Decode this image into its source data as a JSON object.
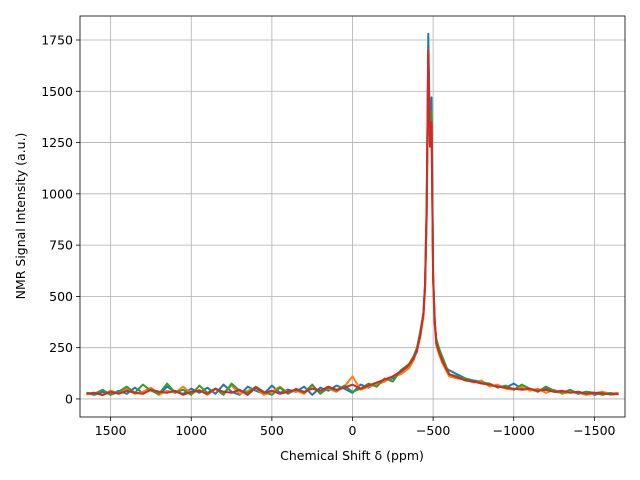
{
  "chart_data": {
    "type": "line",
    "x_label": "Chemical Shift δ (ppm)",
    "y_label": "NMR Signal Intensity (a.u.)",
    "x": [
      1650,
      1600,
      1550,
      1500,
      1450,
      1400,
      1350,
      1300,
      1250,
      1200,
      1150,
      1100,
      1050,
      1000,
      950,
      900,
      850,
      800,
      750,
      700,
      650,
      600,
      550,
      500,
      450,
      400,
      350,
      300,
      250,
      200,
      150,
      100,
      50,
      0,
      -50,
      -100,
      -150,
      -200,
      -250,
      -300,
      -350,
      -380,
      -400,
      -420,
      -440,
      -450,
      -460,
      -470,
      -480,
      -490,
      -500,
      -510,
      -520,
      -540,
      -560,
      -580,
      -600,
      -650,
      -700,
      -750,
      -800,
      -850,
      -900,
      -950,
      -1000,
      -1050,
      -1100,
      -1150,
      -1200,
      -1250,
      -1300,
      -1350,
      -1400,
      -1450,
      -1500,
      -1550,
      -1600,
      -1650
    ],
    "series": [
      {
        "color": "#1f77b4",
        "values": [
          28,
          20,
          35,
          22,
          40,
          25,
          55,
          30,
          45,
          20,
          60,
          35,
          25,
          50,
          30,
          55,
          25,
          70,
          35,
          20,
          60,
          40,
          25,
          65,
          30,
          45,
          35,
          60,
          20,
          55,
          40,
          65,
          50,
          30,
          70,
          55,
          80,
          90,
          100,
          130,
          160,
          200,
          230,
          320,
          420,
          560,
          900,
          1780,
          1250,
          1470,
          600,
          380,
          280,
          230,
          190,
          150,
          140,
          120,
          100,
          90,
          85,
          70,
          60,
          55,
          75,
          50,
          45,
          40,
          55,
          35,
          30,
          40,
          25,
          35,
          20,
          30,
          22,
          25
        ]
      },
      {
        "color": "#ff7f0e",
        "values": [
          22,
          30,
          18,
          40,
          28,
          50,
          25,
          35,
          55,
          20,
          40,
          30,
          60,
          25,
          45,
          20,
          50,
          30,
          65,
          25,
          40,
          55,
          20,
          35,
          60,
          30,
          40,
          25,
          65,
          30,
          50,
          35,
          60,
          110,
          45,
          60,
          70,
          85,
          110,
          120,
          150,
          190,
          240,
          300,
          400,
          540,
          880,
          1650,
          1300,
          1350,
          580,
          360,
          260,
          210,
          170,
          140,
          110,
          100,
          95,
          80,
          90,
          60,
          70,
          50,
          45,
          60,
          40,
          50,
          30,
          45,
          25,
          35,
          30,
          20,
          28,
          35,
          25,
          30
        ]
      },
      {
        "color": "#2ca02c",
        "values": [
          30,
          25,
          45,
          20,
          35,
          60,
          30,
          70,
          40,
          25,
          75,
          30,
          45,
          20,
          65,
          30,
          50,
          20,
          75,
          40,
          30,
          60,
          35,
          20,
          55,
          25,
          50,
          30,
          70,
          25,
          55,
          40,
          65,
          35,
          50,
          75,
          60,
          100,
          85,
          140,
          170,
          210,
          250,
          330,
          410,
          550,
          920,
          1700,
          1280,
          1400,
          610,
          370,
          290,
          240,
          200,
          160,
          120,
          110,
          100,
          85,
          80,
          75,
          55,
          65,
          45,
          70,
          50,
          35,
          60,
          40,
          30,
          45,
          25,
          35,
          30,
          20,
          30,
          22
        ]
      },
      {
        "color": "#d62728",
        "values": [
          25,
          30,
          20,
          35,
          25,
          40,
          30,
          25,
          45,
          35,
          30,
          40,
          20,
          35,
          40,
          25,
          50,
          35,
          30,
          45,
          20,
          55,
          30,
          40,
          25,
          35,
          45,
          35,
          50,
          40,
          60,
          45,
          55,
          70,
          50,
          65,
          80,
          95,
          110,
          135,
          165,
          200,
          240,
          310,
          420,
          560,
          950,
          1700,
          1230,
          1350,
          590,
          380,
          270,
          220,
          180,
          150,
          120,
          105,
          90,
          85,
          75,
          70,
          60,
          55,
          50,
          45,
          50,
          40,
          45,
          35,
          40,
          30,
          35,
          25,
          30,
          28,
          22,
          25
        ]
      }
    ],
    "xlim": [
      1690,
      -1690
    ],
    "ylim": [
      -88,
      1867
    ],
    "xticks": [
      1500,
      1000,
      500,
      0,
      {
        "value": -500,
        "label": "−500"
      },
      {
        "value": -1000,
        "label": "−1000"
      },
      {
        "value": -1500,
        "label": "−1500"
      }
    ],
    "yticks": [
      0,
      250,
      500,
      750,
      1000,
      1250,
      1500,
      1750
    ],
    "grid": true
  }
}
